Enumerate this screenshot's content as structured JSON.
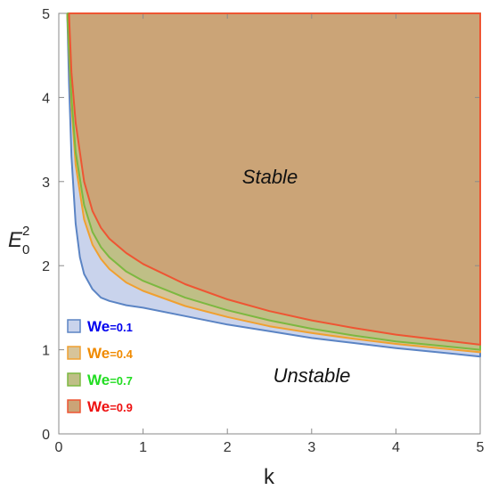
{
  "chart_data": {
    "type": "area",
    "xlabel": "k",
    "ylabel": {
      "base": "E",
      "sub": "0",
      "sup": "2"
    },
    "xlim": [
      0,
      5
    ],
    "ylim": [
      0,
      5
    ],
    "xticks": [
      "0",
      "1",
      "2",
      "3",
      "4",
      "5"
    ],
    "yticks": [
      "0",
      "1",
      "2",
      "3",
      "4",
      "5"
    ],
    "annotations": {
      "stable": "Stable",
      "unstable": "Unstable"
    },
    "series": [
      {
        "name": "We=0.1",
        "we_text": "We",
        "value_text": "=0.1",
        "legend_color": "#0000ee",
        "line_color": "#5b84c4",
        "fill_color": "#c9d3ec",
        "x": [
          0.1,
          0.12,
          0.15,
          0.2,
          0.25,
          0.3,
          0.4,
          0.5,
          0.6,
          0.8,
          1,
          1.5,
          2,
          2.5,
          3,
          3.5,
          4,
          4.5,
          5
        ],
        "y": [
          5.0,
          4.2,
          3.3,
          2.5,
          2.1,
          1.9,
          1.72,
          1.62,
          1.58,
          1.53,
          1.5,
          1.4,
          1.3,
          1.22,
          1.14,
          1.08,
          1.02,
          0.97,
          0.92
        ]
      },
      {
        "name": "We=0.4",
        "we_text": "We",
        "value_text": "=0.4",
        "legend_color": "#f08a00",
        "line_color": "#f0a030",
        "fill_color": "#d7c49a",
        "x": [
          0.1,
          0.15,
          0.2,
          0.3,
          0.4,
          0.5,
          0.6,
          0.8,
          1,
          1.5,
          2,
          2.5,
          3,
          3.5,
          4,
          4.5,
          5
        ],
        "y": [
          5.0,
          3.9,
          3.2,
          2.55,
          2.25,
          2.08,
          1.96,
          1.8,
          1.7,
          1.52,
          1.39,
          1.28,
          1.2,
          1.13,
          1.07,
          1.02,
          0.97
        ]
      },
      {
        "name": "We=0.7",
        "we_text": "We",
        "value_text": "=0.7",
        "legend_color": "#22dd22",
        "line_color": "#7cb840",
        "fill_color": "#bfbf86",
        "x": [
          0.1,
          0.15,
          0.2,
          0.3,
          0.4,
          0.5,
          0.6,
          0.8,
          1,
          1.5,
          2,
          2.5,
          3,
          3.5,
          4,
          4.5,
          5
        ],
        "y": [
          5.0,
          4.0,
          3.35,
          2.72,
          2.4,
          2.22,
          2.1,
          1.93,
          1.82,
          1.62,
          1.47,
          1.35,
          1.25,
          1.17,
          1.1,
          1.05,
          1.0
        ]
      },
      {
        "name": "We=0.9",
        "we_text": "We",
        "value_text": "=0.9",
        "legend_color": "#ee1111",
        "line_color": "#ee5533",
        "fill_color": "#cba477",
        "x": [
          0.12,
          0.15,
          0.2,
          0.3,
          0.4,
          0.5,
          0.6,
          0.8,
          1,
          1.5,
          2,
          2.5,
          3,
          3.5,
          4,
          4.5,
          5
        ],
        "y": [
          5.0,
          4.3,
          3.7,
          3.0,
          2.65,
          2.45,
          2.32,
          2.15,
          2.02,
          1.78,
          1.6,
          1.46,
          1.35,
          1.26,
          1.18,
          1.12,
          1.06
        ]
      }
    ]
  }
}
